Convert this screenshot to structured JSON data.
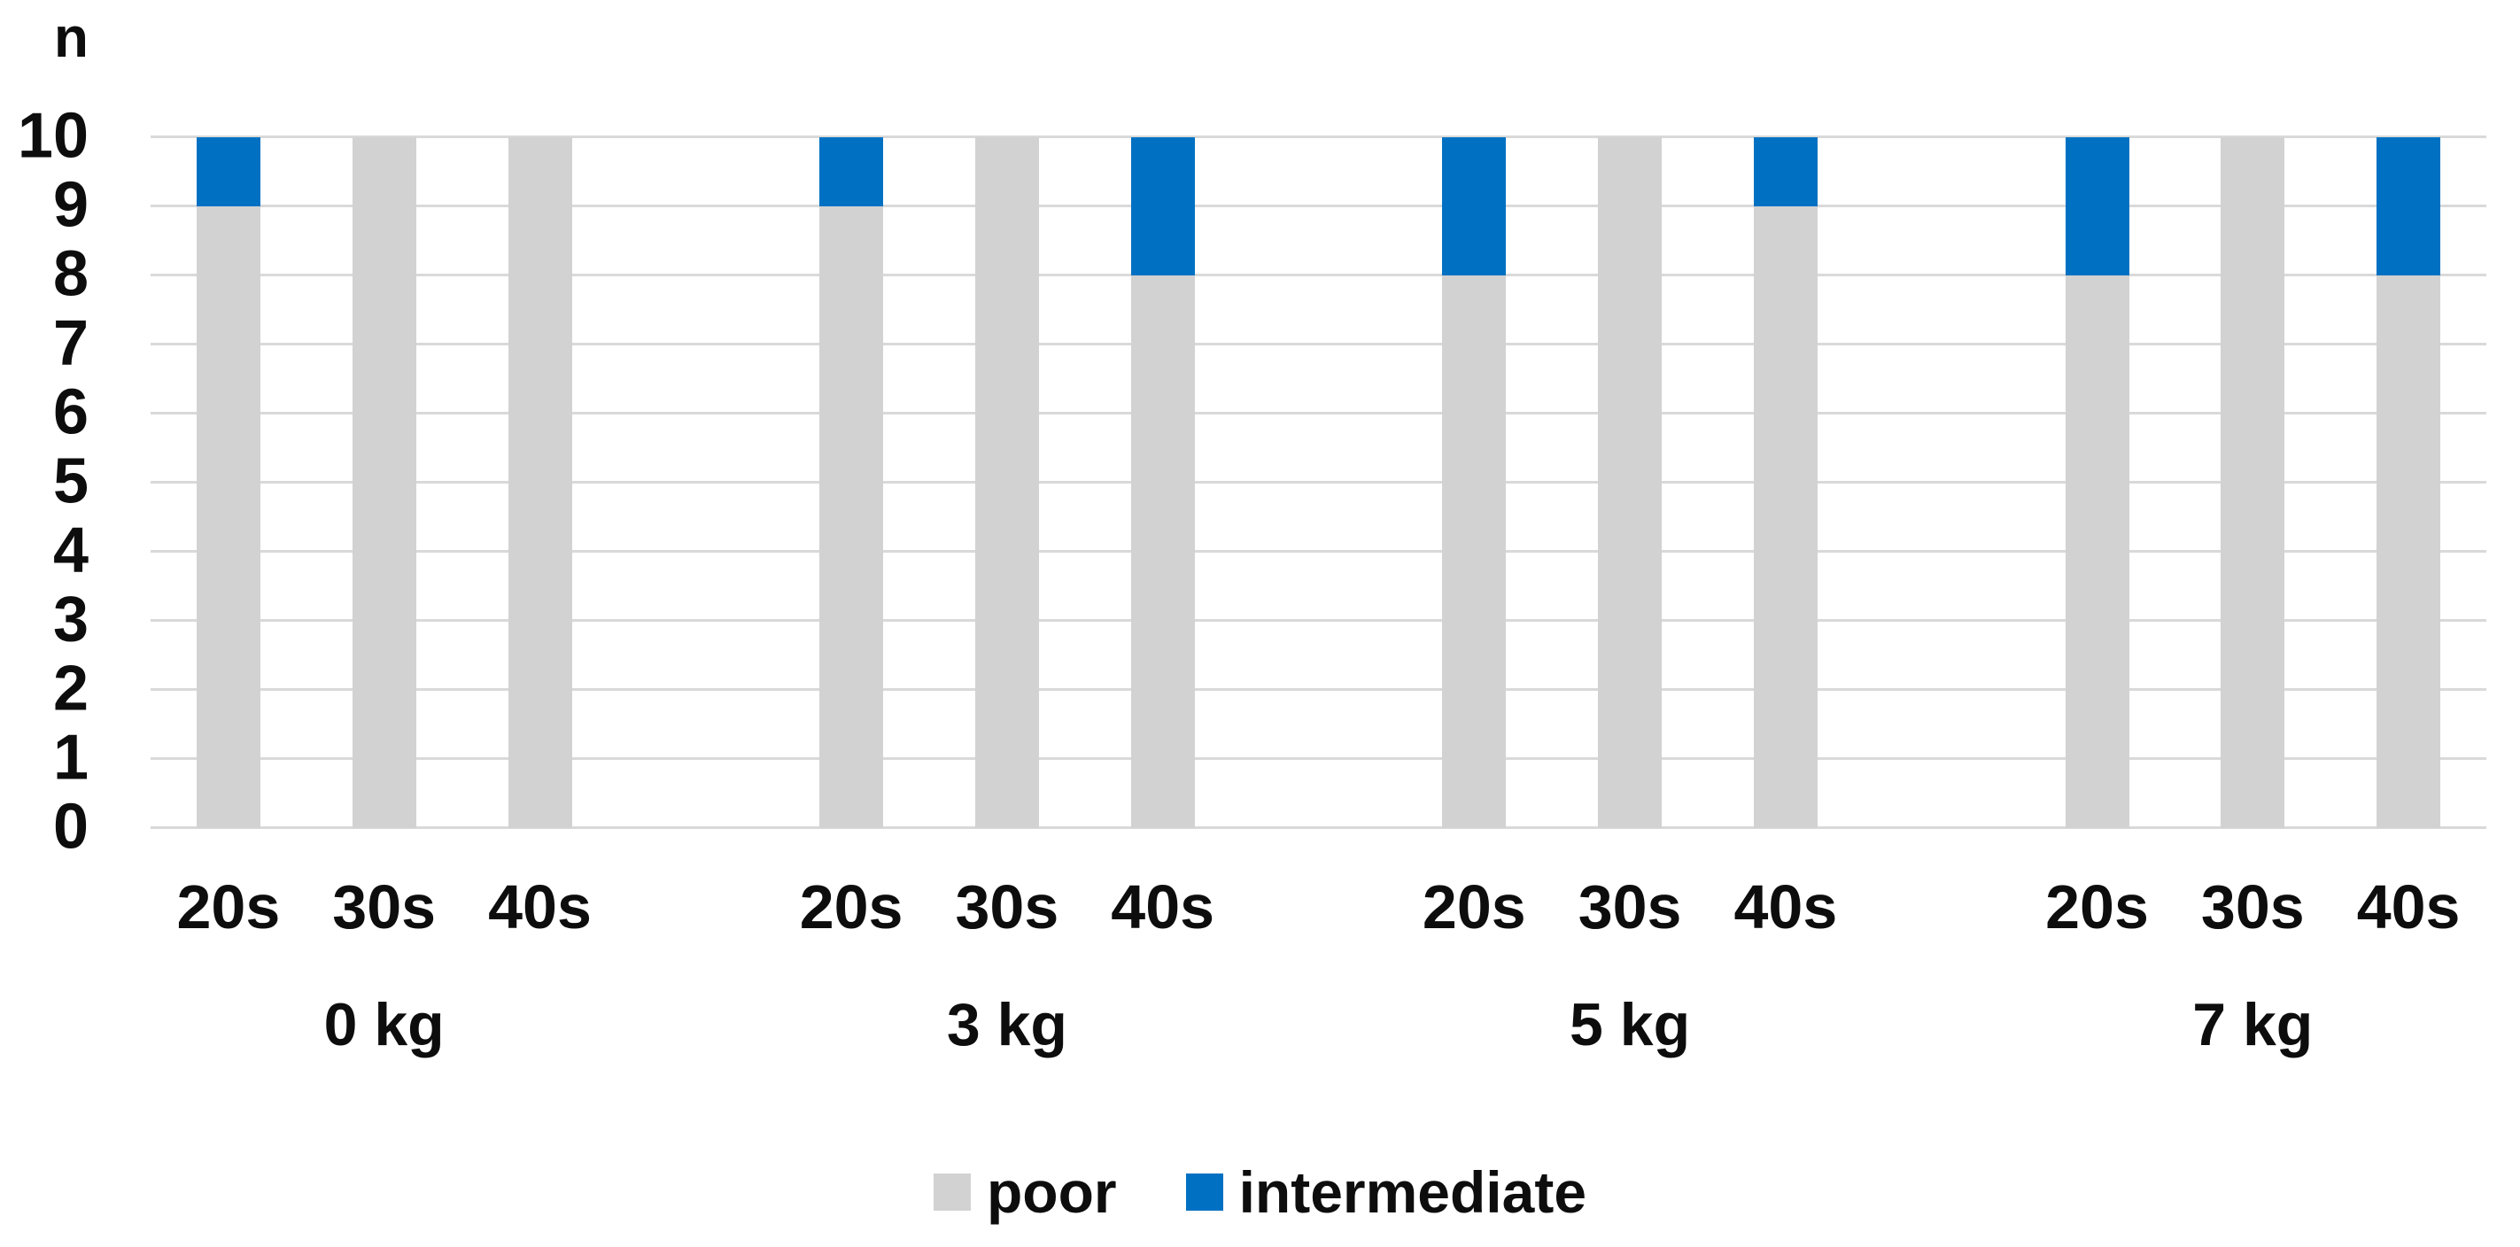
{
  "chart_data": {
    "type": "bar",
    "stacked": true,
    "ylabel": "n",
    "ylim": [
      0,
      10
    ],
    "ytick_step": 1,
    "grid": true,
    "gridline_color": "#D9D9D9",
    "legend_position": "bottom",
    "group_labels": [
      "0 kg",
      "3 kg",
      "5 kg",
      "7 kg"
    ],
    "categories": [
      "20s",
      "30s",
      "40s"
    ],
    "series": [
      {
        "name": "poor",
        "color": "#D2D2D2",
        "values": [
          [
            9,
            10,
            10
          ],
          [
            9,
            10,
            8
          ],
          [
            8,
            10,
            9
          ],
          [
            8,
            10,
            8
          ]
        ]
      },
      {
        "name": "intermediate",
        "color": "#0071C2",
        "values": [
          [
            1,
            0,
            0
          ],
          [
            1,
            0,
            2
          ],
          [
            2,
            0,
            1
          ],
          [
            2,
            0,
            2
          ]
        ]
      }
    ]
  }
}
